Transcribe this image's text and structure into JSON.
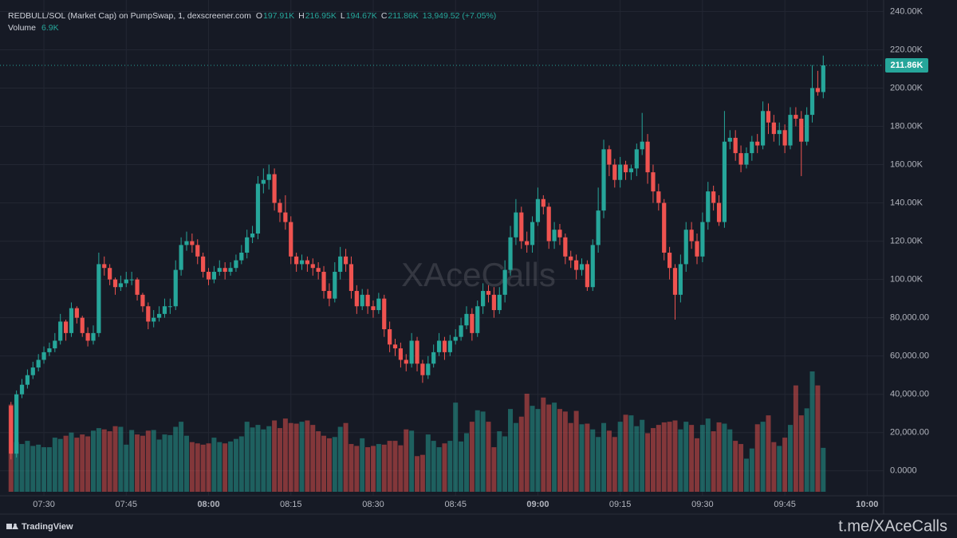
{
  "chart_data": {
    "type": "candlestick",
    "title": "REDBULL/SOL (Market Cap) on PumpSwap, 1, dexscreener.com",
    "legend_items": [
      {
        "key": "O",
        "value": "197.91K"
      },
      {
        "key": "H",
        "value": "216.95K"
      },
      {
        "key": "L",
        "value": "194.67K"
      },
      {
        "key": "C",
        "value": "211.86K"
      }
    ],
    "change": "13,949.52 (+7.05%)",
    "volume_name": "Volume",
    "volume_last": "6.9K",
    "x": [
      "07:24",
      "07:25",
      "07:26",
      "07:27",
      "07:28",
      "07:29",
      "07:30",
      "07:31",
      "07:32",
      "07:33",
      "07:34",
      "07:35",
      "07:36",
      "07:37",
      "07:38",
      "07:39",
      "07:40",
      "07:41",
      "07:42",
      "07:43",
      "07:44",
      "07:45",
      "07:46",
      "07:47",
      "07:48",
      "07:49",
      "07:50",
      "07:51",
      "07:52",
      "07:53",
      "07:54",
      "07:55",
      "07:56",
      "07:57",
      "07:58",
      "07:59",
      "08:00",
      "08:01",
      "08:02",
      "08:03",
      "08:04",
      "08:05",
      "08:06",
      "08:07",
      "08:08",
      "08:09",
      "08:10",
      "08:11",
      "08:12",
      "08:13",
      "08:14",
      "08:15",
      "08:16",
      "08:17",
      "08:18",
      "08:19",
      "08:20",
      "08:21",
      "08:22",
      "08:23",
      "08:24",
      "08:25",
      "08:26",
      "08:27",
      "08:28",
      "08:29",
      "08:30",
      "08:31",
      "08:32",
      "08:33",
      "08:34",
      "08:35",
      "08:36",
      "08:37",
      "08:38",
      "08:39",
      "08:40",
      "08:41",
      "08:42",
      "08:43",
      "08:44",
      "08:45",
      "08:46",
      "08:47",
      "08:48",
      "08:49",
      "08:50",
      "08:51",
      "08:52",
      "08:53",
      "08:54",
      "08:55",
      "08:56",
      "08:57",
      "08:58",
      "08:59",
      "09:00",
      "09:01",
      "09:02",
      "09:03",
      "09:04",
      "09:05",
      "09:06",
      "09:07",
      "09:08",
      "09:09",
      "09:10",
      "09:11",
      "09:12",
      "09:13",
      "09:14",
      "09:15",
      "09:16",
      "09:17",
      "09:18",
      "09:19",
      "09:20",
      "09:21",
      "09:22",
      "09:23",
      "09:24",
      "09:25",
      "09:26",
      "09:27",
      "09:28",
      "09:29",
      "09:30",
      "09:31",
      "09:32",
      "09:33",
      "09:34",
      "09:35",
      "09:36",
      "09:37",
      "09:38",
      "09:39",
      "09:40",
      "09:41",
      "09:42",
      "09:43",
      "09:44",
      "09:45",
      "09:46",
      "09:47",
      "09:48",
      "09:49",
      "09:50",
      "09:51",
      "09:52"
    ],
    "open": [
      34000,
      9000,
      40000,
      45000,
      50000,
      54000,
      58000,
      62000,
      64000,
      68000,
      78000,
      72000,
      85000,
      80000,
      72000,
      68000,
      72000,
      108000,
      106000,
      100000,
      96000,
      98000,
      100000,
      100000,
      92000,
      86000,
      78000,
      80000,
      82000,
      86000,
      86000,
      105000,
      118000,
      120000,
      118000,
      112000,
      104000,
      100000,
      104000,
      106000,
      104000,
      106000,
      110000,
      114000,
      122000,
      124000,
      150000,
      152000,
      155000,
      140000,
      135000,
      130000,
      112000,
      108000,
      110000,
      108000,
      106000,
      104000,
      94000,
      90000,
      104000,
      112000,
      108000,
      94000,
      86000,
      92000,
      86000,
      84000,
      90000,
      74000,
      66000,
      64000,
      58000,
      56000,
      68000,
      56000,
      50000,
      56000,
      62000,
      68000,
      62000,
      68000,
      70000,
      76000,
      82000,
      72000,
      86000,
      94000,
      92000,
      84000,
      92000,
      105000,
      122000,
      135000,
      120000,
      118000,
      130000,
      142000,
      138000,
      120000,
      126000,
      122000,
      112000,
      110000,
      105000,
      108000,
      96000,
      118000,
      136000,
      168000,
      160000,
      152000,
      160000,
      156000,
      158000,
      168000,
      172000,
      156000,
      146000,
      140000,
      114000,
      106000,
      92000,
      108000,
      126000,
      120000,
      112000,
      130000,
      146000,
      140000,
      130000,
      172000,
      174000,
      166000,
      160000,
      166000,
      172000,
      170000,
      188000,
      182000,
      176000,
      178000,
      170000,
      186000,
      184000,
      172000,
      186000,
      200000,
      197910
    ],
    "high": [
      36000,
      42000,
      48000,
      53000,
      57000,
      61000,
      65000,
      67000,
      72000,
      82000,
      79000,
      88000,
      86000,
      81000,
      75000,
      76000,
      114000,
      112000,
      108000,
      101000,
      102000,
      104000,
      104000,
      101000,
      93000,
      88000,
      84000,
      86000,
      90000,
      90000,
      110000,
      122000,
      125000,
      124000,
      121000,
      114000,
      106000,
      107000,
      110000,
      109000,
      109000,
      113000,
      118000,
      126000,
      128000,
      154000,
      158000,
      160000,
      158000,
      142000,
      144000,
      133000,
      114000,
      113000,
      112000,
      111000,
      109000,
      107000,
      98000,
      109000,
      117000,
      116000,
      112000,
      97000,
      95000,
      95000,
      89000,
      93000,
      92000,
      78000,
      69000,
      67000,
      61000,
      72000,
      70000,
      58000,
      60000,
      66000,
      72000,
      70000,
      71000,
      74000,
      80000,
      86000,
      85000,
      89000,
      98000,
      97000,
      96000,
      96000,
      110000,
      128000,
      142000,
      138000,
      125000,
      133000,
      148000,
      144000,
      140000,
      130000,
      129000,
      124000,
      115000,
      113000,
      111000,
      110000,
      121000,
      148000,
      173000,
      170000,
      163000,
      164000,
      162000,
      160000,
      171000,
      187000,
      176000,
      160000,
      150000,
      142000,
      117000,
      108000,
      113000,
      130000,
      130000,
      124000,
      135000,
      151000,
      149000,
      144000,
      188000,
      178000,
      178000,
      170000,
      169000,
      175000,
      176000,
      193000,
      192000,
      186000,
      182000,
      181000,
      190000,
      190000,
      188000,
      190000,
      212000,
      209000,
      216950
    ],
    "low": [
      6000,
      7000,
      38000,
      43000,
      48000,
      52000,
      56000,
      60000,
      62000,
      66000,
      68000,
      70000,
      77000,
      70000,
      65000,
      66000,
      70000,
      102000,
      97000,
      92000,
      94000,
      96000,
      97000,
      89000,
      83000,
      74000,
      75000,
      78000,
      80000,
      82000,
      84000,
      102000,
      115000,
      114000,
      108000,
      101000,
      97000,
      98000,
      102000,
      100000,
      102000,
      104000,
      108000,
      111000,
      119000,
      121000,
      145000,
      147000,
      136000,
      130000,
      126000,
      108000,
      104000,
      105000,
      104000,
      102000,
      100000,
      90000,
      86000,
      88000,
      100000,
      104000,
      90000,
      82000,
      84000,
      82000,
      80000,
      82000,
      70000,
      62000,
      60000,
      54000,
      52000,
      54000,
      52000,
      46000,
      48000,
      54000,
      60000,
      58000,
      60000,
      66000,
      68000,
      74000,
      68000,
      70000,
      82000,
      88000,
      80000,
      82000,
      88000,
      102000,
      118000,
      116000,
      114000,
      114000,
      128000,
      134000,
      116000,
      116000,
      118000,
      108000,
      106000,
      100000,
      102000,
      94000,
      94000,
      114000,
      132000,
      154000,
      148000,
      148000,
      152000,
      152000,
      154000,
      165000,
      150000,
      140000,
      136000,
      110000,
      100000,
      79000,
      88000,
      104000,
      116000,
      108000,
      109000,
      126000,
      136000,
      128000,
      127000,
      168000,
      162000,
      156000,
      158000,
      162000,
      166000,
      168000,
      176000,
      172000,
      170000,
      166000,
      168000,
      180000,
      154000,
      170000,
      182000,
      196000,
      194670
    ],
    "close": [
      9000,
      40000,
      45000,
      50000,
      54000,
      58000,
      62000,
      64000,
      68000,
      78000,
      72000,
      85000,
      80000,
      72000,
      68000,
      72000,
      108000,
      106000,
      100000,
      96000,
      98000,
      100000,
      100000,
      92000,
      86000,
      78000,
      80000,
      82000,
      86000,
      86000,
      105000,
      118000,
      120000,
      118000,
      112000,
      104000,
      100000,
      104000,
      106000,
      104000,
      106000,
      110000,
      114000,
      122000,
      124000,
      150000,
      152000,
      155000,
      140000,
      135000,
      130000,
      112000,
      108000,
      110000,
      108000,
      106000,
      104000,
      94000,
      90000,
      104000,
      112000,
      108000,
      94000,
      86000,
      92000,
      86000,
      84000,
      90000,
      74000,
      66000,
      64000,
      58000,
      56000,
      68000,
      56000,
      50000,
      56000,
      62000,
      68000,
      62000,
      68000,
      70000,
      76000,
      82000,
      72000,
      86000,
      94000,
      92000,
      84000,
      92000,
      105000,
      122000,
      135000,
      120000,
      118000,
      130000,
      142000,
      138000,
      120000,
      126000,
      122000,
      112000,
      110000,
      105000,
      108000,
      96000,
      118000,
      136000,
      168000,
      160000,
      152000,
      160000,
      156000,
      158000,
      168000,
      172000,
      156000,
      146000,
      140000,
      114000,
      106000,
      92000,
      108000,
      126000,
      120000,
      112000,
      130000,
      146000,
      140000,
      130000,
      172000,
      174000,
      166000,
      160000,
      166000,
      172000,
      170000,
      188000,
      182000,
      176000,
      178000,
      170000,
      186000,
      184000,
      172000,
      186000,
      200000,
      197910,
      211860
    ],
    "volume": [
      13700,
      7800,
      7500,
      8000,
      7200,
      7400,
      7000,
      7000,
      8500,
      8300,
      8800,
      9300,
      8500,
      9000,
      8700,
      9600,
      10000,
      9800,
      9500,
      10300,
      10200,
      7400,
      9700,
      9000,
      8800,
      9600,
      9700,
      8200,
      9000,
      8900,
      10200,
      11000,
      8800,
      7800,
      7600,
      7400,
      7600,
      8500,
      7800,
      7600,
      7900,
      8300,
      8700,
      11000,
      10100,
      10500,
      9800,
      10300,
      11200,
      10000,
      11500,
      10800,
      10700,
      11000,
      11200,
      10500,
      9500,
      8800,
      8400,
      8600,
      10200,
      10800,
      7500,
      7200,
      8400,
      7000,
      7200,
      7500,
      7400,
      8000,
      8000,
      7300,
      9800,
      9600,
      5600,
      5800,
      9000,
      8000,
      7000,
      7600,
      8000,
      14000,
      7900,
      9200,
      11000,
      12800,
      12600,
      11000,
      7000,
      9500,
      8700,
      13000,
      10800,
      11800,
      15400,
      13500,
      13000,
      14800,
      13700,
      14000,
      13000,
      12600,
      10800,
      12700,
      10600,
      10700,
      9800,
      8600,
      10800,
      9600,
      8600,
      11000,
      12100,
      12000,
      10300,
      11300,
      9200,
      10000,
      10500,
      10900,
      11000,
      11200,
      9800,
      11000,
      10500,
      8400,
      10500,
      11500,
      9500,
      10900,
      10700,
      9800,
      8000,
      7500,
      5200,
      6800,
      10600,
      11000,
      12000,
      7800,
      7200,
      8500,
      10500,
      16700,
      12000,
      13100,
      18900,
      16700,
      6900
    ],
    "up_color": "#26a69a",
    "down_color": "#ef5350",
    "ylim": [
      -13000,
      246000
    ],
    "yticks": [
      {
        "value": 0,
        "label": "0.0000"
      },
      {
        "value": 20000,
        "label": "20,000.00"
      },
      {
        "value": 40000,
        "label": "40,000.00"
      },
      {
        "value": 60000,
        "label": "60,000.00"
      },
      {
        "value": 80000,
        "label": "80,000.00"
      },
      {
        "value": 100000,
        "label": "100.00K"
      },
      {
        "value": 120000,
        "label": "120.00K"
      },
      {
        "value": 140000,
        "label": "140.00K"
      },
      {
        "value": 160000,
        "label": "160.00K"
      },
      {
        "value": 180000,
        "label": "180.00K"
      },
      {
        "value": 200000,
        "label": "200.00K"
      },
      {
        "value": 220000,
        "label": "220.00K"
      },
      {
        "value": 240000,
        "label": "240.00K"
      }
    ],
    "xlim": [
      "07:22",
      "10:03"
    ],
    "xticks": [
      "07:30",
      "07:45",
      "08:00",
      "08:15",
      "08:30",
      "08:45",
      "09:00",
      "09:15",
      "09:30",
      "09:45",
      "10:00"
    ],
    "last_price": {
      "value": 211860,
      "label": "211.86K"
    },
    "grid": true
  },
  "watermark": "XAceCalls",
  "footer": {
    "brand": "TradingView",
    "link": "t.me/XAceCalls"
  }
}
